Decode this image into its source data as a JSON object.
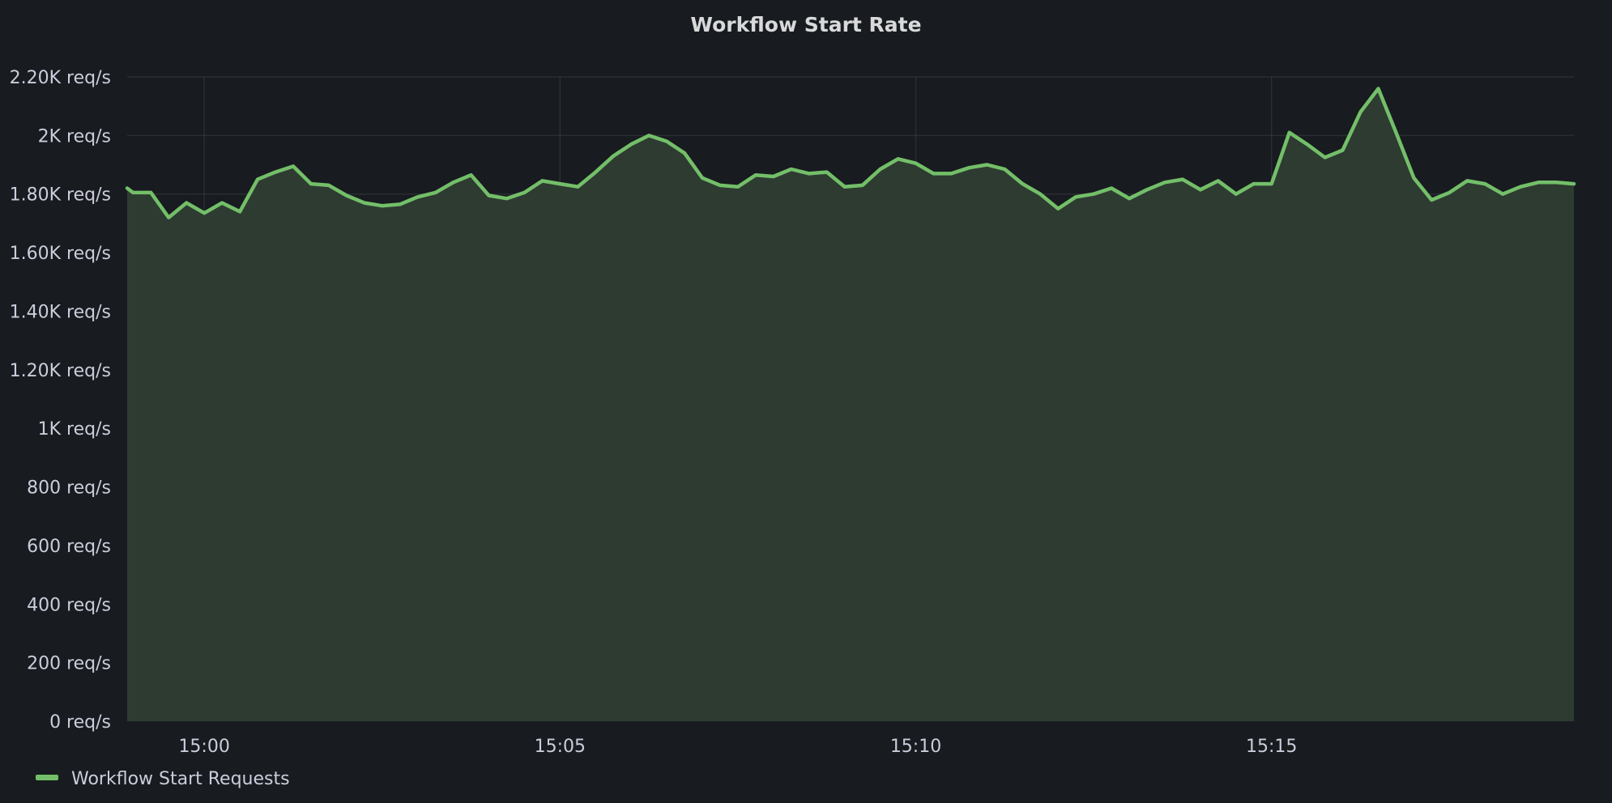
{
  "panel": {
    "title": "Workflow Start Rate"
  },
  "colors": {
    "background": "#181b1f",
    "series_line": "#73bf69",
    "series_fill": "#2e3b31"
  },
  "chart_data": {
    "type": "area",
    "title": "Workflow Start Rate",
    "xlabel": "",
    "ylabel": "",
    "unit": "req/s",
    "ylim": [
      0,
      2200
    ],
    "y_ticks": [
      {
        "value": 0,
        "label": "0 req/s"
      },
      {
        "value": 200,
        "label": "200 req/s"
      },
      {
        "value": 400,
        "label": "400 req/s"
      },
      {
        "value": 600,
        "label": "600 req/s"
      },
      {
        "value": 800,
        "label": "800 req/s"
      },
      {
        "value": 1000,
        "label": "1K req/s"
      },
      {
        "value": 1200,
        "label": "1.20K req/s"
      },
      {
        "value": 1400,
        "label": "1.40K req/s"
      },
      {
        "value": 1600,
        "label": "1.60K req/s"
      },
      {
        "value": 1800,
        "label": "1.80K req/s"
      },
      {
        "value": 2000,
        "label": "2K req/s"
      },
      {
        "value": 2200,
        "label": "2.20K req/s"
      }
    ],
    "x_time_range": [
      "14:58:55",
      "15:19:15"
    ],
    "x_ticks": [
      "15:00",
      "15:05",
      "15:10",
      "15:15"
    ],
    "grid": true,
    "legend_position": "bottom-left",
    "series": [
      {
        "name": "Workflow Start Requests",
        "color": "#73bf69",
        "x": [
          "14:58:55",
          "14:59:00",
          "14:59:15",
          "14:59:30",
          "14:59:45",
          "15:00:00",
          "15:00:15",
          "15:00:30",
          "15:00:45",
          "15:01:00",
          "15:01:15",
          "15:01:30",
          "15:01:45",
          "15:02:00",
          "15:02:15",
          "15:02:30",
          "15:02:45",
          "15:03:00",
          "15:03:15",
          "15:03:30",
          "15:03:45",
          "15:04:00",
          "15:04:15",
          "15:04:30",
          "15:04:45",
          "15:05:00",
          "15:05:15",
          "15:05:30",
          "15:05:45",
          "15:06:00",
          "15:06:15",
          "15:06:30",
          "15:06:45",
          "15:07:00",
          "15:07:15",
          "15:07:30",
          "15:07:45",
          "15:08:00",
          "15:08:15",
          "15:08:30",
          "15:08:45",
          "15:09:00",
          "15:09:15",
          "15:09:30",
          "15:09:45",
          "15:10:00",
          "15:10:15",
          "15:10:30",
          "15:10:45",
          "15:11:00",
          "15:11:15",
          "15:11:30",
          "15:11:45",
          "15:12:00",
          "15:12:15",
          "15:12:30",
          "15:12:45",
          "15:13:00",
          "15:13:15",
          "15:13:30",
          "15:13:45",
          "15:14:00",
          "15:14:15",
          "15:14:30",
          "15:14:45",
          "15:15:00",
          "15:15:15",
          "15:15:30",
          "15:15:45",
          "15:16:00",
          "15:16:15",
          "15:16:30",
          "15:16:45",
          "15:17:00",
          "15:17:15",
          "15:17:30",
          "15:17:45",
          "15:18:00",
          "15:18:15",
          "15:18:30",
          "15:18:45",
          "15:19:00",
          "15:19:15"
        ],
        "values": [
          1820,
          1805,
          1805,
          1720,
          1770,
          1735,
          1770,
          1740,
          1850,
          1875,
          1895,
          1835,
          1830,
          1795,
          1770,
          1760,
          1765,
          1790,
          1805,
          1840,
          1865,
          1795,
          1785,
          1805,
          1845,
          1835,
          1825,
          1875,
          1930,
          1970,
          2000,
          1980,
          1940,
          1855,
          1830,
          1825,
          1865,
          1860,
          1885,
          1870,
          1875,
          1825,
          1830,
          1885,
          1920,
          1905,
          1870,
          1870,
          1890,
          1900,
          1885,
          1835,
          1800,
          1750,
          1790,
          1800,
          1820,
          1785,
          1815,
          1840,
          1850,
          1815,
          1845,
          1800,
          1835,
          1835,
          2010,
          1970,
          1925,
          1950,
          2080,
          2160,
          2010,
          1855,
          1780,
          1805,
          1845,
          1835,
          1800,
          1825,
          1840,
          1840,
          1835
        ]
      }
    ]
  }
}
